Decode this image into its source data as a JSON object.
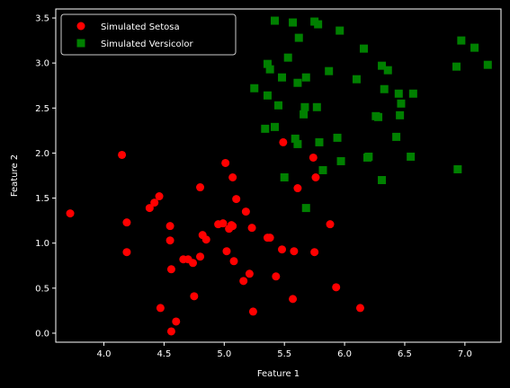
{
  "chart_data": {
    "type": "scatter",
    "title": "",
    "xlabel": "Feature 1",
    "ylabel": "Feature 2",
    "xlim": [
      3.6,
      7.3
    ],
    "ylim": [
      -0.1,
      3.6
    ],
    "xticks": [
      "4.0",
      "4.5",
      "5.0",
      "5.5",
      "6.0",
      "6.5",
      "7.0"
    ],
    "yticks": [
      "0.0",
      "0.5",
      "1.0",
      "1.5",
      "2.0",
      "2.5",
      "3.0",
      "3.5"
    ],
    "grid": false,
    "legend_position": "top-left",
    "series": [
      {
        "name": "Simulated Setosa",
        "marker": "circle",
        "color": "#ff0000",
        "points": [
          [
            3.72,
            1.33
          ],
          [
            4.15,
            1.98
          ],
          [
            4.19,
            1.23
          ],
          [
            4.19,
            0.9
          ],
          [
            4.38,
            1.39
          ],
          [
            4.42,
            1.45
          ],
          [
            4.46,
            1.52
          ],
          [
            4.47,
            0.28
          ],
          [
            4.55,
            1.19
          ],
          [
            4.55,
            1.03
          ],
          [
            4.56,
            0.71
          ],
          [
            4.56,
            0.02
          ],
          [
            4.6,
            0.13
          ],
          [
            4.66,
            0.82
          ],
          [
            4.7,
            0.82
          ],
          [
            4.74,
            0.78
          ],
          [
            4.75,
            0.41
          ],
          [
            4.8,
            1.62
          ],
          [
            4.8,
            0.85
          ],
          [
            4.82,
            1.09
          ],
          [
            4.85,
            1.04
          ],
          [
            4.95,
            1.21
          ],
          [
            4.99,
            1.22
          ],
          [
            5.01,
            1.89
          ],
          [
            5.02,
            0.91
          ],
          [
            5.04,
            1.16
          ],
          [
            5.06,
            1.2
          ],
          [
            5.07,
            1.19
          ],
          [
            5.07,
            1.73
          ],
          [
            5.08,
            0.8
          ],
          [
            5.1,
            1.49
          ],
          [
            5.16,
            0.58
          ],
          [
            5.18,
            1.35
          ],
          [
            5.21,
            0.66
          ],
          [
            5.23,
            1.17
          ],
          [
            5.24,
            0.24
          ],
          [
            5.36,
            1.06
          ],
          [
            5.38,
            1.06
          ],
          [
            5.43,
            0.63
          ],
          [
            5.48,
            0.93
          ],
          [
            5.49,
            2.12
          ],
          [
            5.57,
            0.38
          ],
          [
            5.58,
            0.91
          ],
          [
            5.61,
            1.61
          ],
          [
            5.74,
            1.95
          ],
          [
            5.75,
            0.9
          ],
          [
            5.76,
            1.73
          ],
          [
            5.88,
            1.21
          ],
          [
            5.93,
            0.51
          ],
          [
            6.13,
            0.28
          ]
        ]
      },
      {
        "name": "Simulated Versicolor",
        "marker": "square",
        "color": "#008000",
        "points": [
          [
            5.25,
            2.72
          ],
          [
            5.34,
            2.27
          ],
          [
            5.36,
            2.99
          ],
          [
            5.36,
            2.64
          ],
          [
            5.38,
            2.93
          ],
          [
            5.42,
            2.29
          ],
          [
            5.42,
            3.47
          ],
          [
            5.45,
            2.53
          ],
          [
            5.48,
            2.84
          ],
          [
            5.5,
            1.73
          ],
          [
            5.53,
            3.06
          ],
          [
            5.57,
            3.45
          ],
          [
            5.59,
            2.16
          ],
          [
            5.61,
            2.1
          ],
          [
            5.61,
            2.78
          ],
          [
            5.62,
            3.28
          ],
          [
            5.66,
            2.43
          ],
          [
            5.67,
            2.51
          ],
          [
            5.68,
            1.39
          ],
          [
            5.68,
            2.84
          ],
          [
            5.75,
            3.46
          ],
          [
            5.77,
            2.51
          ],
          [
            5.78,
            3.43
          ],
          [
            5.79,
            2.12
          ],
          [
            5.82,
            1.81
          ],
          [
            5.87,
            2.91
          ],
          [
            5.94,
            2.17
          ],
          [
            5.96,
            3.36
          ],
          [
            5.97,
            1.91
          ],
          [
            6.1,
            2.82
          ],
          [
            6.16,
            3.16
          ],
          [
            6.19,
            1.95
          ],
          [
            6.2,
            1.96
          ],
          [
            6.26,
            2.41
          ],
          [
            6.28,
            2.4
          ],
          [
            6.31,
            1.7
          ],
          [
            6.31,
            2.97
          ],
          [
            6.33,
            2.71
          ],
          [
            6.36,
            2.92
          ],
          [
            6.43,
            2.18
          ],
          [
            6.45,
            2.66
          ],
          [
            6.46,
            2.42
          ],
          [
            6.47,
            2.55
          ],
          [
            6.55,
            1.96
          ],
          [
            6.57,
            2.66
          ],
          [
            6.93,
            2.96
          ],
          [
            6.94,
            1.82
          ],
          [
            6.97,
            3.25
          ],
          [
            7.08,
            3.17
          ],
          [
            7.19,
            2.98
          ]
        ]
      }
    ]
  }
}
